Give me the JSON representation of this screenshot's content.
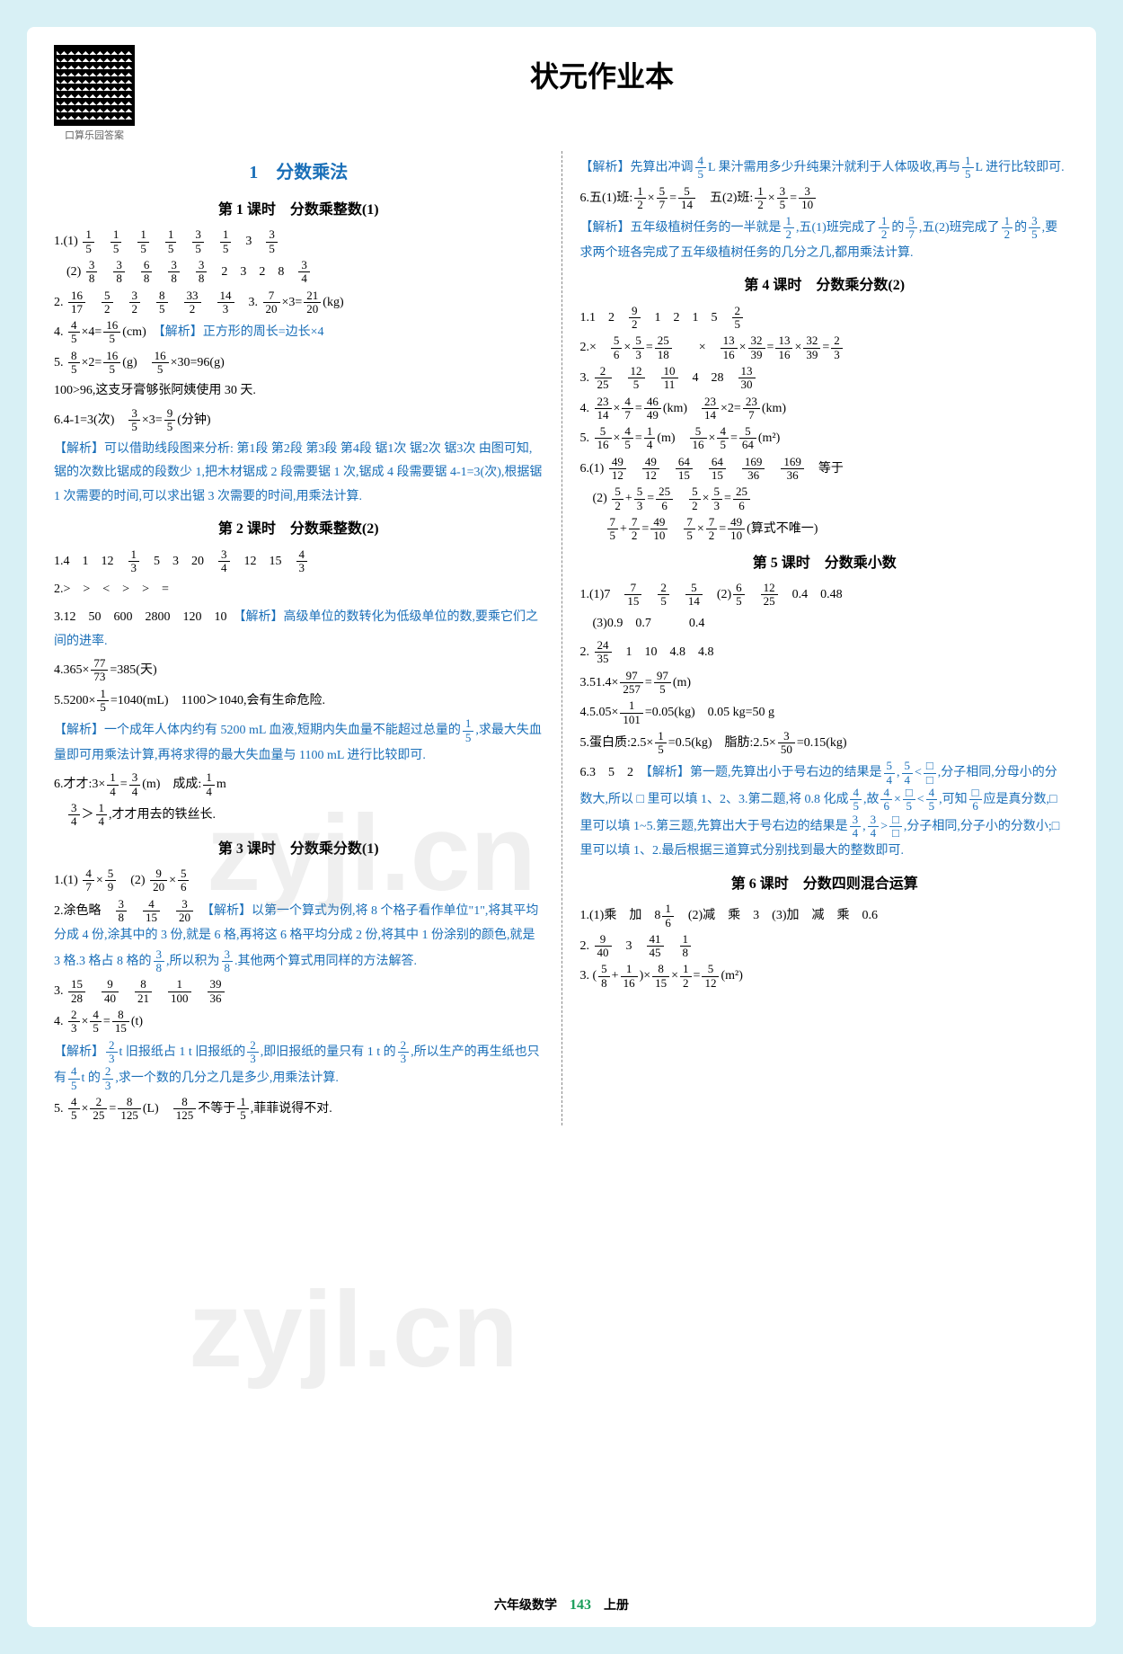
{
  "page": {
    "title": "状元作业本",
    "qr_label": "口算乐园答案",
    "footer_left": "六年级数学",
    "footer_page": "143",
    "footer_right": "上册",
    "watermark": "zyjl.cn",
    "background_color": "#d8f0f5",
    "content_bg": "#ffffff",
    "accent_color": "#1a6fb8",
    "green_color": "#1a9e5a"
  },
  "chapter": {
    "number": "1",
    "title": "分数乘法"
  },
  "lessons": {
    "l1": {
      "title": "第 1 课时　分数乘整数(1)",
      "a1_1": "1.(1) 1/5　1/5　1/5　1/5　3/5　1/5　3　3/5",
      "a1_2": "(2) 3/8　3/8　6/8　3/8　3/8　2　3　2　8　3/4",
      "a2": "2. 16/17　5/2　3/2　8/5　33/2　14/3",
      "a3": "3. 7/20 ×3 = 21/20 (kg)",
      "a4": "4. 4/5 ×4= 16/5 (cm)",
      "a4_note": "【解析】正方形的周长=边长×4",
      "a5": "5. 8/5 ×2= 16/5 (g)　16/5 ×30=96(g)",
      "a5_2": "100>96,这支牙膏够张阿姨使用 30 天.",
      "a6": "6.4-1=3(次)　3/5 ×3= 9/5 (分钟)",
      "a6_note": "【解析】可以借助线段图来分析: 第1段 第2段 第3段 第4段 锯1次 锯2次 锯3次 由图可知,锯的次数比锯成的段数少 1,把木材锯成 2 段需要锯 1 次,锯成 4 段需要锯 4-1=3(次),根据锯 1 次需要的时间,可以求出锯 3 次需要的时间,用乘法计算."
    },
    "l2": {
      "title": "第 2 课时　分数乘整数(2)",
      "a1": "1.4　1　12　1/3　5　3　20　3/4　12　15　4/3",
      "a2": "2.>　>　<　>　>　=",
      "a3": "3.12　50　600　2800　120　10",
      "a3_note": "【解析】高级单位的数转化为低级单位的数,要乘它们之间的进率.",
      "a4": "4.365× 77/73 =385(天)",
      "a5": "5.5200× 1/5 =1040(mL)　1100>1040,会有生命危险.",
      "a5_note": "【解析】一个成年人体内约有 5200 mL 血液,短期内失血量不能超过总量的 1/5 ,求最大失血量即可用乘法计算,再将求得的最大失血量与 1100 mL 进行比较即可.",
      "a6": "6.才才:3× 1/4 = 3/4 (m)　成成: 1/4 m",
      "a6_2": "3/4 > 1/4 ,才才用去的铁丝长."
    },
    "l3": {
      "title": "第 3 课时　分数乘分数(1)",
      "a1": "1.(1) 4/7 × 5/9　(2) 9/20 × 5/6",
      "a2": "2.涂色略　3/8　4/15　3/20",
      "a2_note": "【解析】以第一个算式为例,将 8 个格子看作单位\"1\",将其平均分成 4 份,涂其中的 3 份,就是 6 格,再将这 6 格平均分成 2 份,将其中 1 份涂别的颜色,就是 3 格.3 格占 8 格的 3/8 ,所以积为 3/8 .其他两个算式用同样的方法解答.",
      "a3": "3. 15/28　9/40　8/21　1/100　39/36",
      "a4": "4. 2/3 × 4/5 = 8/15 (t)",
      "a4_note": "【解析】 2/3 t 旧报纸占 1 t 旧报纸的 2/3 ,即旧报纸的量只有 1 t 的 2/3 ,所以生产的再生纸也只有 4/5 t 的 2/3 ,求一个数的几分之几是多少,用乘法计算.",
      "a5": "5. 4/5 × 2/25 = 8/125 (L)　8/125 不等于 1/5 ,菲菲说得不对.",
      "a5_note": "【解析】先算出冲调 4/5 L 果汁需用多少升纯果汁就利于人体吸收,再与 1/5 L 进行比较即可.",
      "a6": "6.五(1)班: 1/2 × 5/7 = 5/14　五(2)班: 1/2 × 3/5 = 3/10",
      "a6_note": "【解析】五年级植树任务的一半就是 1/2 ,五(1)班完成了 1/2 的 5/7 ,五(2)班完成了 1/2 的 3/5 ,要求两个班各完成了五年级植树任务的几分之几,都用乘法计算."
    },
    "l4": {
      "title": "第 4 课时　分数乘分数(2)",
      "a1": "1.1　2　9/2　1　2　1　5　2/5",
      "a2": "2.×　5/6 × 5/3 = 25/18　×　13/16 × 32/39 = 13/16 × 32/39 = 2/3",
      "a3": "3. 2/25　12/5　10/11　4　28　13/30",
      "a4": "4. 23/14 × 4/7 = 46/49 (km)　23/14 ×2= 23/7 (km)",
      "a5": "5. 5/16 × 4/5 = 1/4 (m)　5/16 × 4/5 = 5/64 (m²)",
      "a6": "6.(1) 49/12　49/12　64/15　64/15　169/36　169/36 等于",
      "a6_2": "(2) 5/2 + 5/3 = 25/6　5/2 × 5/3 = 25/6",
      "a6_3": "7/5 + 7/2 = 49/10　7/5 × 7/2 = 49/10 (算式不唯一)"
    },
    "l5": {
      "title": "第 5 课时　分数乘小数",
      "a1": "1.(1)7　7/15　2/5　5/14　(2) 6/5　12/25　0.4　0.48",
      "a1_2": "(3)0.9　0.7　　　0.4",
      "a2": "2. 24/35　1　10　4.8　4.8",
      "a3": "3.51.4× 97/257 = 97/5 (m)",
      "a4": "4.5.05× 1/101 =0.05(kg)　0.05 kg=50 g",
      "a5": "5.蛋白质:2.5× 1/5 =0.5(kg)　脂肪:2.5× 3/50 =0.15(kg)",
      "a6": "6.3　5　2",
      "a6_note": "【解析】第一题,先算出小于号右边的结果是 5/4 , 5/4 < □ ,分子相同,分母小的分数大,所以 □ 里可以填 1、2、3.第二题,将 0.8 化成 4/5 ,故 4/6 × □/5 < 4/5 ,可知 □/6 应是真分数, □ 里可以填 1~5.第三题,先算出大于号右边的结果是 3/4 , 3/4 > □ ,分子相同,分子小的分数小; □ 里可以填 1、2.最后根据三道算式分别找到最大的整数即可."
    },
    "l6": {
      "title": "第 6 课时　分数四则混合运算",
      "a1": "1.(1)乘　加　8 1/6　(2)减　乘　3　(3)加　减　乘　0.6",
      "a2": "2. 9/40　3　41/45　1/8",
      "a3": "3. ( 5/8 + 1/16 )× 8/15 × 1/2 = 5/12 (m²)"
    }
  }
}
